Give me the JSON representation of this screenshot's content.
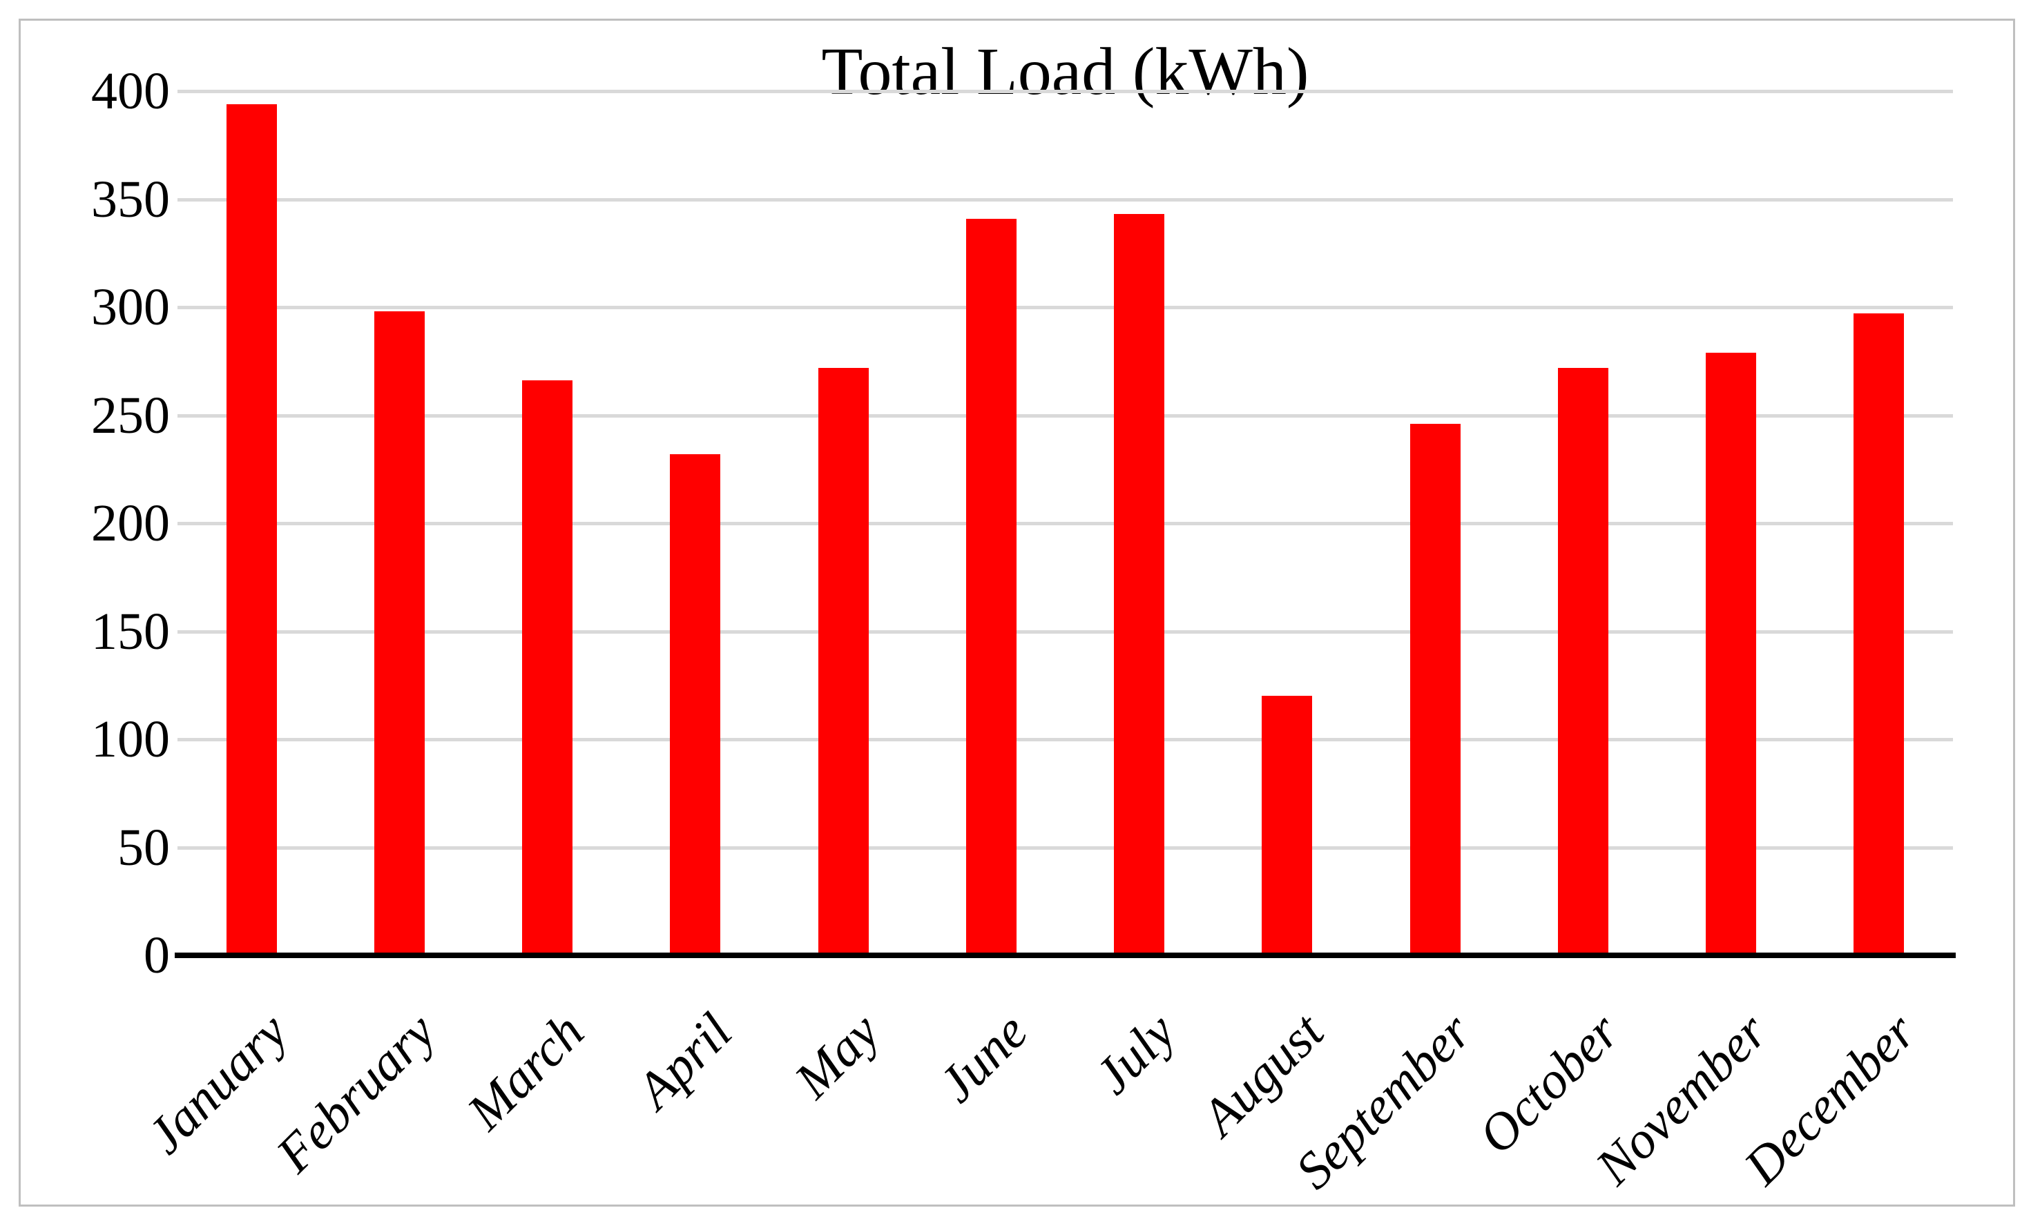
{
  "chart_data": {
    "type": "bar",
    "title": "Total Load (kWh)",
    "categories": [
      "January",
      "February",
      "March",
      "April",
      "May",
      "June",
      "July",
      "August",
      "September",
      "October",
      "November",
      "December"
    ],
    "values": [
      394,
      298,
      266,
      232,
      272,
      341,
      343,
      120,
      246,
      272,
      279,
      297
    ],
    "xlabel": "",
    "ylabel": "",
    "ylim": [
      0,
      400
    ],
    "yticks": [
      0,
      50,
      100,
      150,
      200,
      250,
      300,
      350,
      400
    ],
    "grid": "horizontal",
    "legend": "none",
    "bar_color": "#FF0000",
    "gridline_color": "#D9D9D9",
    "axis_line_color": "#000000",
    "text_color": "#000000",
    "figure_border_color": "#BFBFBF",
    "background": "#FFFFFF"
  }
}
